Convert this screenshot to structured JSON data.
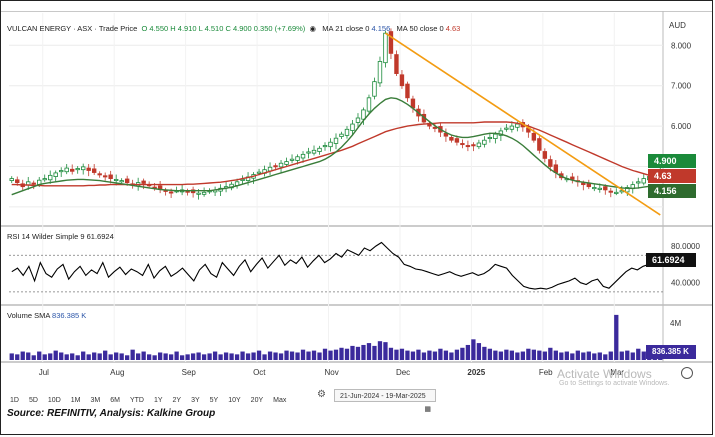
{
  "header": {
    "title": "VULCAN ENERGY · ASX · Trade Price",
    "ohlc": "O 4.550  H 4.910  L 4.510  C 4.900  0.350 (+7.69%)",
    "ma21": "MA 21 close 0",
    "ma21_value": "4.156",
    "ma50": "MA 50 close 0",
    "ma50_value": "4.63"
  },
  "currency": "AUD",
  "price_tags": {
    "close": "4.900",
    "ma50": "4.63",
    "ma21": "4.156"
  },
  "rsi": {
    "label": "RSI 14 Wilder Simple 9",
    "value": "61.6924"
  },
  "volume": {
    "label": "Volume SMA",
    "value": "836.385 K",
    "axis_label": "4M"
  },
  "x_labels": [
    "Jul",
    "Aug",
    "Sep",
    "Oct",
    "Nov",
    "Dec",
    "2025",
    "Feb",
    "Mar"
  ],
  "range_buttons": [
    "1D",
    "5D",
    "10D",
    "1M",
    "3M",
    "6M",
    "YTD",
    "1Y",
    "2Y",
    "3Y",
    "5Y",
    "10Y",
    "20Y",
    "Max"
  ],
  "date_range": "21-Jun-2024 - 19-Mar-2025",
  "watermark": {
    "line1": "Activate Windows",
    "line2": "Go to Settings to activate Windows."
  },
  "source": "Source: REFINITIV, Analysis: Kalkine Group",
  "colors": {
    "up": "#1a8a3a",
    "down": "#c0392b",
    "ma21": "#3a7d3a",
    "ma50": "#c0392b",
    "trend": "#f39c12",
    "rsi": "#000000",
    "volume": "#3b2a9c"
  },
  "chart_data": [
    {
      "type": "candlestick",
      "title": "VULCAN ENERGY · ASX · Trade Price",
      "ylabel": "AUD",
      "ylim": [
        3.6,
        8.8
      ],
      "y_ticks": [
        4.0,
        5.0,
        6.0,
        7.0,
        8.0
      ],
      "y_tick_labels": [
        "",
        "",
        "6.000",
        "7.000",
        "8.000"
      ],
      "x_labels": [
        "Jul",
        "Aug",
        "Sep",
        "Oct",
        "Nov",
        "Dec",
        "2025",
        "Feb",
        "Mar"
      ],
      "grid": true,
      "close": [
        4.7,
        4.6,
        4.5,
        4.62,
        4.58,
        4.66,
        4.7,
        4.78,
        4.84,
        4.9,
        4.96,
        4.88,
        4.95,
        4.99,
        4.9,
        4.85,
        4.8,
        4.75,
        4.7,
        4.68,
        4.65,
        4.6,
        4.55,
        4.6,
        4.58,
        4.52,
        4.48,
        4.44,
        4.4,
        4.36,
        4.4,
        4.42,
        4.38,
        4.35,
        4.34,
        4.36,
        4.4,
        4.42,
        4.46,
        4.5,
        4.56,
        4.62,
        4.68,
        4.74,
        4.8,
        4.86,
        4.92,
        4.98,
        5.02,
        5.08,
        5.12,
        5.18,
        5.24,
        5.3,
        5.36,
        5.4,
        5.45,
        5.52,
        5.6,
        5.7,
        5.8,
        5.92,
        6.05,
        6.2,
        6.4,
        6.7,
        7.1,
        7.6,
        8.3,
        7.8,
        7.3,
        7.0,
        6.7,
        6.45,
        6.25,
        6.1,
        6.0,
        5.95,
        5.85,
        5.75,
        5.65,
        5.6,
        5.55,
        5.5,
        5.52,
        5.58,
        5.65,
        5.72,
        5.8,
        5.88,
        5.95,
        6.0,
        6.05,
        5.98,
        5.85,
        5.65,
        5.4,
        5.2,
        5.0,
        4.85,
        4.72,
        4.7,
        4.68,
        4.62,
        4.55,
        4.5,
        4.48,
        4.46,
        4.42,
        4.38,
        4.36,
        4.4,
        4.48,
        4.55,
        4.62,
        4.7,
        4.75,
        4.8,
        4.9
      ],
      "ma21": [
        4.3,
        4.35,
        4.4,
        4.45,
        4.5,
        4.55,
        4.58,
        4.6,
        4.62,
        4.64,
        4.66,
        4.67,
        4.68,
        4.68,
        4.67,
        4.66,
        4.65,
        4.63,
        4.61,
        4.59,
        4.57,
        4.55,
        4.53,
        4.51,
        4.49,
        4.47,
        4.45,
        4.43,
        4.42,
        4.41,
        4.4,
        4.4,
        4.4,
        4.4,
        4.4,
        4.4,
        4.4,
        4.42,
        4.44,
        4.46,
        4.49,
        4.52,
        4.56,
        4.6,
        4.64,
        4.68,
        4.72,
        4.76,
        4.8,
        4.84,
        4.88,
        4.92,
        4.96,
        5.0,
        5.04,
        5.08,
        5.12,
        5.18,
        5.26,
        5.36,
        5.48,
        5.62,
        5.78,
        5.96,
        6.14,
        6.3,
        6.44,
        6.56,
        6.66,
        6.7,
        6.68,
        6.62,
        6.54,
        6.44,
        6.33,
        6.22,
        6.11,
        6.01,
        5.92,
        5.84,
        5.78,
        5.74,
        5.72,
        5.72,
        5.74,
        5.77,
        5.8,
        5.82,
        5.82,
        5.8,
        5.76,
        5.7,
        5.62,
        5.52,
        5.4,
        5.28,
        5.16,
        5.04,
        4.93,
        4.84,
        4.76,
        4.7,
        4.66,
        4.63,
        4.61,
        4.59,
        4.57,
        4.55,
        4.53,
        4.51,
        4.49,
        4.47,
        4.46,
        4.46,
        4.47,
        4.49,
        4.51,
        4.53,
        4.16
      ],
      "ma50": [
        4.55,
        4.55,
        4.54,
        4.54,
        4.53,
        4.53,
        4.52,
        4.52,
        4.52,
        4.52,
        4.52,
        4.52,
        4.52,
        4.52,
        4.53,
        4.53,
        4.54,
        4.54,
        4.55,
        4.55,
        4.55,
        4.55,
        4.55,
        4.55,
        4.55,
        4.55,
        4.55,
        4.55,
        4.55,
        4.55,
        4.55,
        4.55,
        4.56,
        4.56,
        4.57,
        4.58,
        4.59,
        4.6,
        4.61,
        4.63,
        4.65,
        4.67,
        4.7,
        4.73,
        4.76,
        4.8,
        4.84,
        4.88,
        4.92,
        4.96,
        5.0,
        5.04,
        5.08,
        5.12,
        5.16,
        5.2,
        5.24,
        5.28,
        5.32,
        5.36,
        5.4,
        5.45,
        5.5,
        5.56,
        5.62,
        5.68,
        5.74,
        5.8,
        5.86,
        5.9,
        5.94,
        5.97,
        6.0,
        6.02,
        6.04,
        6.05,
        6.06,
        6.07,
        6.08,
        6.08,
        6.08,
        6.08,
        6.08,
        6.08,
        6.08,
        6.09,
        6.1,
        6.1,
        6.1,
        6.1,
        6.1,
        6.09,
        6.07,
        6.04,
        6.0,
        5.95,
        5.9,
        5.84,
        5.78,
        5.72,
        5.66,
        5.6,
        5.54,
        5.48,
        5.42,
        5.36,
        5.3,
        5.24,
        5.18,
        5.12,
        5.06,
        5.0,
        4.95,
        4.9,
        4.86,
        4.82,
        4.78,
        4.75,
        4.63
      ],
      "trendline": [
        {
          "x": 68,
          "y": 8.3
        },
        {
          "x": 118,
          "y": 3.8
        }
      ]
    },
    {
      "type": "line",
      "title": "RSI 14 Wilder Simple 9",
      "ylim": [
        20,
        90
      ],
      "y_ticks": [
        40,
        80
      ],
      "y_tick_labels": [
        "40.0000",
        "80.0000"
      ],
      "levels": [
        30,
        70
      ],
      "values": [
        52,
        56,
        48,
        58,
        42,
        62,
        50,
        46,
        55,
        60,
        44,
        52,
        58,
        48,
        54,
        50,
        62,
        46,
        52,
        57,
        49,
        55,
        52,
        48,
        60,
        45,
        53,
        58,
        47,
        51,
        56,
        49,
        42,
        54,
        60,
        50,
        46,
        62,
        55,
        48,
        58,
        65,
        52,
        60,
        67,
        56,
        63,
        70,
        59,
        65,
        61,
        68,
        57,
        64,
        70,
        62,
        66,
        72,
        68,
        76,
        73,
        70,
        78,
        75,
        80,
        84,
        78,
        72,
        68,
        60,
        58,
        55,
        54,
        52,
        50,
        48,
        50,
        52,
        49,
        47,
        49,
        51,
        48,
        50,
        54,
        60,
        58,
        56,
        48,
        42,
        36,
        34,
        33,
        34,
        33,
        35,
        38,
        40,
        42,
        45,
        40,
        38,
        42,
        44,
        36,
        34,
        40,
        46,
        52,
        56,
        54,
        58,
        60,
        62,
        61.69
      ],
      "last": 61.69
    },
    {
      "type": "bar",
      "title": "Volume SMA",
      "ylim": [
        0,
        5000000
      ],
      "y_ticks": [
        4000000
      ],
      "y_tick_labels": [
        "4M"
      ],
      "values": [
        0.7,
        0.6,
        0.9,
        0.8,
        0.5,
        0.9,
        0.6,
        0.7,
        1.0,
        0.8,
        0.6,
        0.7,
        0.5,
        0.9,
        0.6,
        0.8,
        0.7,
        1.0,
        0.6,
        0.8,
        0.7,
        0.5,
        1.1,
        0.7,
        0.9,
        0.6,
        0.5,
        0.8,
        0.7,
        0.6,
        0.9,
        0.5,
        0.6,
        0.7,
        0.8,
        0.6,
        0.7,
        0.9,
        0.6,
        0.8,
        0.7,
        0.6,
        0.9,
        0.7,
        0.8,
        1.0,
        0.6,
        0.9,
        0.8,
        0.7,
        1.0,
        0.9,
        0.8,
        1.1,
        0.9,
        1.0,
        0.8,
        1.2,
        1.0,
        1.1,
        1.3,
        1.2,
        1.5,
        1.4,
        1.6,
        1.8,
        1.5,
        2.0,
        1.9,
        1.3,
        1.1,
        1.2,
        1.0,
        0.9,
        1.1,
        0.8,
        1.0,
        0.9,
        1.2,
        1.0,
        0.8,
        1.1,
        1.3,
        1.6,
        2.2,
        1.8,
        1.4,
        1.2,
        1.0,
        0.9,
        1.1,
        1.0,
        0.8,
        0.9,
        1.2,
        1.1,
        1.0,
        0.9,
        1.3,
        1.0,
        0.8,
        0.9,
        0.7,
        1.0,
        0.8,
        0.9,
        0.7,
        0.8,
        0.6,
        0.9,
        4.8,
        0.9,
        1.0,
        0.8,
        1.2,
        0.9,
        1.1,
        0.8,
        0.84
      ],
      "unit": "million"
    }
  ]
}
